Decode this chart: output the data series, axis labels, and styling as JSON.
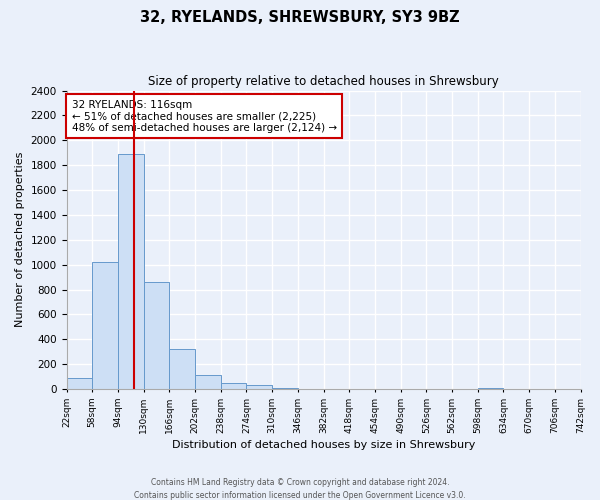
{
  "title": "32, RYELANDS, SHREWSBURY, SY3 9BZ",
  "subtitle": "Size of property relative to detached houses in Shrewsbury",
  "xlabel": "Distribution of detached houses by size in Shrewsbury",
  "ylabel": "Number of detached properties",
  "bin_edges": [
    22,
    58,
    94,
    130,
    166,
    202,
    238,
    274,
    310,
    346,
    382,
    418,
    454,
    490,
    526,
    562,
    598,
    634,
    670,
    706,
    742
  ],
  "bin_counts": [
    90,
    1020,
    1890,
    860,
    320,
    115,
    50,
    30,
    10,
    0,
    0,
    0,
    0,
    0,
    0,
    0,
    10,
    0,
    0,
    0
  ],
  "bar_color": "#cddff5",
  "bar_edge_color": "#6699cc",
  "vline_x": 116,
  "vline_color": "#cc0000",
  "annotation_line1": "32 RYELANDS: 116sqm",
  "annotation_line2": "← 51% of detached houses are smaller (2,225)",
  "annotation_line3": "48% of semi-detached houses are larger (2,124) →",
  "annotation_box_color": "#ffffff",
  "annotation_box_edge_color": "#cc0000",
  "ylim": [
    0,
    2400
  ],
  "yticks": [
    0,
    200,
    400,
    600,
    800,
    1000,
    1200,
    1400,
    1600,
    1800,
    2000,
    2200,
    2400
  ],
  "footer_line1": "Contains HM Land Registry data © Crown copyright and database right 2024.",
  "footer_line2": "Contains public sector information licensed under the Open Government Licence v3.0.",
  "bg_color": "#eaf0fa",
  "plot_bg_color": "#eaf0fa",
  "grid_color": "#ffffff",
  "tick_labels": [
    "22sqm",
    "58sqm",
    "94sqm",
    "130sqm",
    "166sqm",
    "202sqm",
    "238sqm",
    "274sqm",
    "310sqm",
    "346sqm",
    "382sqm",
    "418sqm",
    "454sqm",
    "490sqm",
    "526sqm",
    "562sqm",
    "598sqm",
    "634sqm",
    "670sqm",
    "706sqm",
    "742sqm"
  ]
}
